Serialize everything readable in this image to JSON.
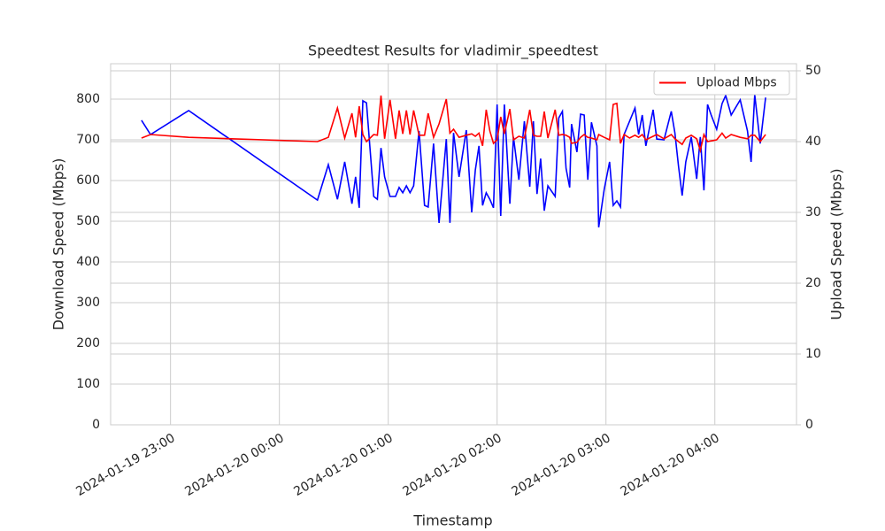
{
  "chart_data": {
    "type": "line",
    "title": "Speedtest Results for vladimir_speedtest",
    "xlabel": "Timestamp",
    "ylabel": "Download Speed (Mbps)",
    "y2label": "Upload Speed (Mbps)",
    "x": [
      "2024-01-19 22:44",
      "2024-01-19 22:49",
      "2024-01-19 23:10",
      "2024-01-20 00:21",
      "2024-01-20 00:27",
      "2024-01-20 00:32",
      "2024-01-20 00:36",
      "2024-01-20 00:40",
      "2024-01-20 00:42",
      "2024-01-20 00:44",
      "2024-01-20 00:46",
      "2024-01-20 00:48",
      "2024-01-20 00:52",
      "2024-01-20 00:54",
      "2024-01-20 00:56",
      "2024-01-20 00:58",
      "2024-01-20 01:01",
      "2024-01-20 01:04",
      "2024-01-20 01:06",
      "2024-01-20 01:08",
      "2024-01-20 01:10",
      "2024-01-20 01:12",
      "2024-01-20 01:14",
      "2024-01-20 01:17",
      "2024-01-20 01:20",
      "2024-01-20 01:22",
      "2024-01-20 01:25",
      "2024-01-20 01:28",
      "2024-01-20 01:32",
      "2024-01-20 01:34",
      "2024-01-20 01:36",
      "2024-01-20 01:39",
      "2024-01-20 01:43",
      "2024-01-20 01:46",
      "2024-01-20 01:48",
      "2024-01-20 01:50",
      "2024-01-20 01:52",
      "2024-01-20 01:54",
      "2024-01-20 01:56",
      "2024-01-20 01:58",
      "2024-01-20 02:00",
      "2024-01-20 02:02",
      "2024-01-20 02:04",
      "2024-01-20 02:07",
      "2024-01-20 02:09",
      "2024-01-20 02:12",
      "2024-01-20 02:15",
      "2024-01-20 02:18",
      "2024-01-20 02:20",
      "2024-01-20 02:22",
      "2024-01-20 02:24",
      "2024-01-20 02:26",
      "2024-01-20 02:28",
      "2024-01-20 02:32",
      "2024-01-20 02:34",
      "2024-01-20 02:36",
      "2024-01-20 02:38",
      "2024-01-20 02:40",
      "2024-01-20 02:41",
      "2024-01-20 02:44",
      "2024-01-20 02:46",
      "2024-01-20 02:48",
      "2024-01-20 02:50",
      "2024-01-20 02:52",
      "2024-01-20 02:55",
      "2024-01-20 02:56",
      "2024-01-20 02:59",
      "2024-01-20 03:02",
      "2024-01-20 03:04",
      "2024-01-20 03:06",
      "2024-01-20 03:08",
      "2024-01-20 03:10",
      "2024-01-20 03:13",
      "2024-01-20 03:16",
      "2024-01-20 03:18",
      "2024-01-20 03:20",
      "2024-01-20 03:22",
      "2024-01-20 03:26",
      "2024-01-20 03:28",
      "2024-01-20 03:32",
      "2024-01-20 03:36",
      "2024-01-20 03:38",
      "2024-01-20 03:40",
      "2024-01-20 03:42",
      "2024-01-20 03:44",
      "2024-01-20 03:47",
      "2024-01-20 03:50",
      "2024-01-20 03:52",
      "2024-01-20 03:54",
      "2024-01-20 03:56",
      "2024-01-20 03:58",
      "2024-01-20 04:01",
      "2024-01-20 04:04",
      "2024-01-20 04:06",
      "2024-01-20 04:09",
      "2024-01-20 04:14",
      "2024-01-20 04:18",
      "2024-01-20 04:20",
      "2024-01-20 04:22",
      "2024-01-20 04:25",
      "2024-01-20 04:28"
    ],
    "series": [
      {
        "color": "#0000ff",
        "values": [
          748,
          713,
          772,
          552,
          639,
          554,
          646,
          543,
          609,
          533,
          796,
          791,
          561,
          554,
          680,
          609,
          561,
          561,
          583,
          570,
          587,
          570,
          587,
          722,
          539,
          535,
          691,
          496,
          702,
          496,
          717,
          609,
          724,
          522,
          626,
          685,
          539,
          570,
          554,
          533,
          787,
          513,
          787,
          543,
          707,
          602,
          746,
          585,
          746,
          567,
          654,
          526,
          587,
          561,
          754,
          770,
          630,
          583,
          739,
          670,
          763,
          761,
          602,
          743,
          685,
          485,
          578,
          646,
          539,
          550,
          535,
          713,
          746,
          778,
          713,
          761,
          685,
          774,
          702,
          700,
          770,
          717,
          635,
          563,
          646,
          707,
          604,
          707,
          576,
          787,
          761,
          726,
          789,
          809,
          761,
          798,
          722,
          646,
          811,
          691,
          804
        ]
      },
      {
        "name": "Upload Mbps",
        "color": "#ff0000",
        "axis": "y2",
        "values": [
          40.5,
          41,
          40.6,
          40,
          40.6,
          44.75,
          40.5,
          44,
          40.6,
          45,
          41,
          40,
          41,
          40.9,
          46.5,
          40.4,
          45.9,
          40.4,
          44.4,
          41.1,
          44.4,
          41,
          44.4,
          40.9,
          40.9,
          44,
          40.6,
          42.5,
          46,
          41.2,
          41.75,
          40.6,
          40.9,
          41.1,
          40.75,
          41.2,
          39.4,
          44.5,
          41.5,
          39.75,
          40.25,
          43.5,
          41.1,
          44.6,
          40.25,
          40.75,
          40.5,
          44.5,
          40.9,
          40.75,
          40.75,
          44.25,
          40.5,
          44.5,
          40.9,
          41,
          40.9,
          40.6,
          39.75,
          39.9,
          40.6,
          41,
          40.6,
          40.5,
          40.25,
          41,
          40.6,
          40.25,
          45.25,
          45.4,
          39.75,
          41,
          40.5,
          40.9,
          40.6,
          41,
          40.25,
          40.75,
          41,
          40.4,
          41,
          40.4,
          40,
          39.6,
          40.5,
          40.9,
          40.4,
          38.75,
          41,
          40,
          40.1,
          40.25,
          41.2,
          40.5,
          41,
          40.6,
          40.4,
          40.9,
          40.9,
          40,
          41
        ]
      }
    ],
    "xlim": [
      "2024-01-19 22:27",
      "2024-01-20 04:45"
    ],
    "xticks": [
      "2024-01-19 23:00",
      "2024-01-20 00:00",
      "2024-01-20 01:00",
      "2024-01-20 02:00",
      "2024-01-20 03:00",
      "2024-01-20 04:00"
    ],
    "ylim": [
      0,
      887
    ],
    "yticks": [
      0,
      100,
      200,
      300,
      400,
      500,
      600,
      700,
      800
    ],
    "y2lim": [
      0,
      51
    ],
    "y2ticks": [
      0,
      10,
      20,
      30,
      40,
      50
    ],
    "grid": true,
    "legend": "upper right"
  }
}
